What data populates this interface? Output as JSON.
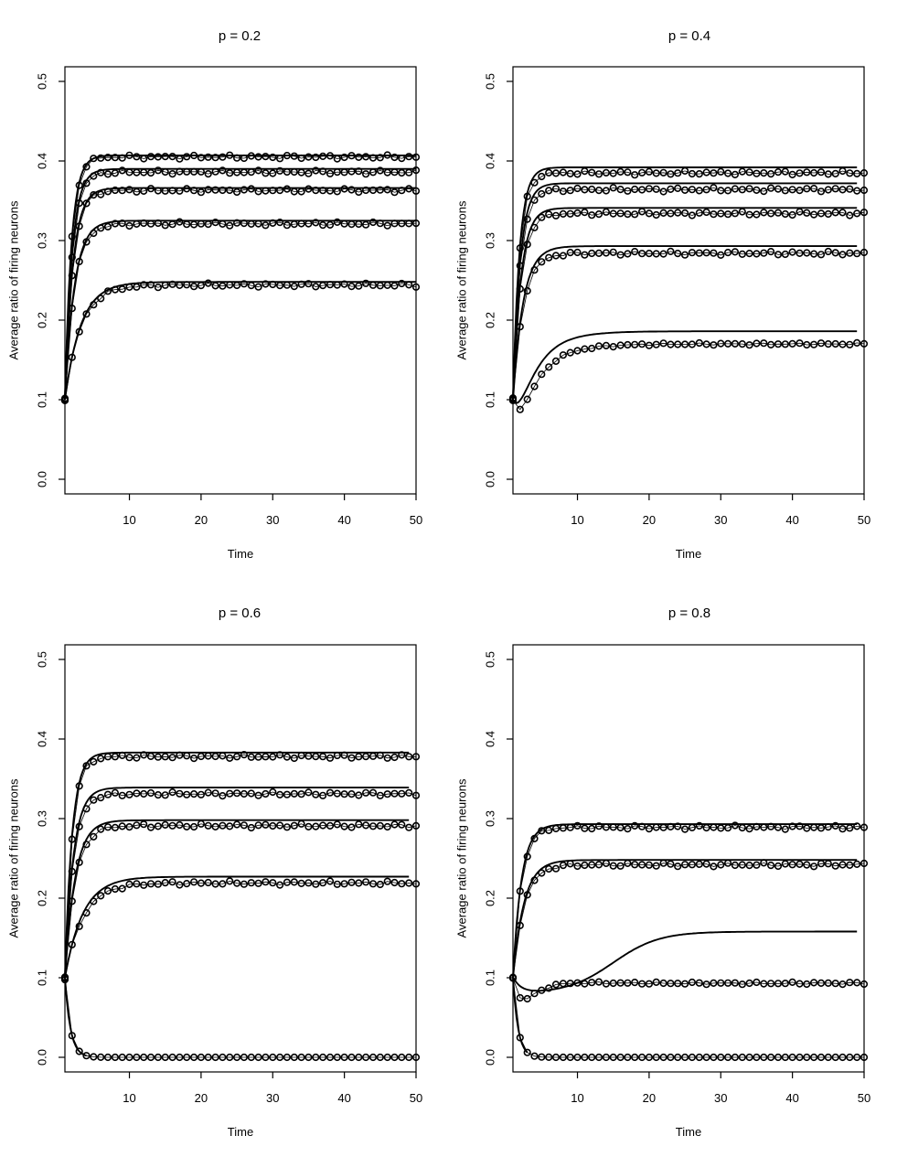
{
  "chart_data": [
    {
      "type": "line",
      "title": "p = 0.2",
      "xlabel": "Time",
      "ylabel": "Average ratio of firing neurons",
      "xlim": [
        1,
        50
      ],
      "ylim": [
        0,
        0.5
      ],
      "xticks": [
        "10",
        "20",
        "30",
        "40",
        "50"
      ],
      "yticks": [
        "0.0",
        "0.1",
        "0.2",
        "0.3",
        "0.4",
        "0.5"
      ],
      "grid": false,
      "legend": false,
      "series": [
        {
          "start": 0.1,
          "theory": {
            "steady": 0.407,
            "k": 1.1,
            "end": 50
          },
          "simulation": {
            "steady": 0.405,
            "noise": 0.0025
          }
        },
        {
          "start": 0.1,
          "theory": {
            "steady": 0.39,
            "k": 1.0,
            "end": 50
          },
          "simulation": {
            "steady": 0.386,
            "noise": 0.0025
          }
        },
        {
          "start": 0.1,
          "theory": {
            "steady": 0.366,
            "k": 0.9,
            "end": 50
          },
          "simulation": {
            "steady": 0.363,
            "noise": 0.0025
          }
        },
        {
          "start": 0.1,
          "theory": {
            "steady": 0.325,
            "k": 0.75,
            "end": 50
          },
          "simulation": {
            "steady": 0.321,
            "noise": 0.0025
          }
        },
        {
          "start": 0.1,
          "theory": {
            "steady": 0.248,
            "k": 0.45,
            "end": 50
          },
          "simulation": {
            "steady": 0.244,
            "noise": 0.0025
          }
        }
      ]
    },
    {
      "type": "line",
      "title": "p = 0.4",
      "xlabel": "Time",
      "ylabel": "Average ratio of firing neurons",
      "xlim": [
        1,
        50
      ],
      "ylim": [
        0,
        0.5
      ],
      "xticks": [
        "10",
        "20",
        "30",
        "40",
        "50"
      ],
      "yticks": [
        "0.0",
        "0.1",
        "0.2",
        "0.3",
        "0.4",
        "0.5"
      ],
      "grid": false,
      "legend": false,
      "series": [
        {
          "start": 0.1,
          "theory": {
            "steady": 0.392,
            "k": 1.1,
            "end": 49
          },
          "simulation": {
            "steady": 0.385,
            "noise": 0.0025
          }
        },
        {
          "start": 0.1,
          "theory": {
            "steady": 0.372,
            "k": 1.0,
            "end": 49
          },
          "simulation": {
            "steady": 0.364,
            "noise": 0.0025
          }
        },
        {
          "start": 0.1,
          "theory": {
            "steady": 0.341,
            "k": 0.9,
            "end": 49
          },
          "simulation": {
            "steady": 0.334,
            "noise": 0.0025
          }
        },
        {
          "start": 0.1,
          "theory": {
            "steady": 0.293,
            "k": 0.7,
            "end": 49
          },
          "simulation": {
            "steady": 0.284,
            "noise": 0.0025
          }
        },
        {
          "start": 0.1,
          "theory": {
            "steady": 0.186,
            "k": 0.28,
            "dip": 0.02,
            "end": 49
          },
          "simulation": {
            "steady": 0.17,
            "k": 0.25,
            "dip": 0.025,
            "noise": 0.0015
          }
        }
      ]
    },
    {
      "type": "line",
      "title": "p = 0.6",
      "xlabel": "Time",
      "ylabel": "Average ratio of firing neurons",
      "xlim": [
        1,
        50
      ],
      "ylim": [
        0,
        0.5
      ],
      "xticks": [
        "10",
        "20",
        "30",
        "40",
        "50"
      ],
      "yticks": [
        "0.0",
        "0.1",
        "0.2",
        "0.3",
        "0.4",
        "0.5"
      ],
      "grid": false,
      "legend": false,
      "series": [
        {
          "start": 0.1,
          "theory": {
            "steady": 0.383,
            "k": 1.0,
            "end": 49
          },
          "simulation": {
            "steady": 0.378,
            "noise": 0.0025
          }
        },
        {
          "start": 0.1,
          "theory": {
            "steady": 0.339,
            "k": 0.85,
            "end": 49
          },
          "simulation": {
            "steady": 0.331,
            "noise": 0.0025
          }
        },
        {
          "start": 0.1,
          "theory": {
            "steady": 0.298,
            "k": 0.7,
            "end": 49
          },
          "simulation": {
            "steady": 0.291,
            "noise": 0.0025
          }
        },
        {
          "start": 0.1,
          "theory": {
            "steady": 0.227,
            "k": 0.4,
            "end": 49
          },
          "simulation": {
            "steady": 0.219,
            "noise": 0.0025
          }
        },
        {
          "start": 0.1,
          "theory": {
            "steady": 0.0,
            "k": 1.3,
            "end": 4
          },
          "simulation": {
            "steady": 0.0,
            "k": 1.3,
            "noise": 0.0
          }
        }
      ]
    },
    {
      "type": "line",
      "title": "p = 0.8",
      "xlabel": "Time",
      "ylabel": "Average ratio of firing neurons",
      "xlim": [
        1,
        50
      ],
      "ylim": [
        0,
        0.5
      ],
      "xticks": [
        "10",
        "20",
        "30",
        "40",
        "50"
      ],
      "yticks": [
        "0.0",
        "0.1",
        "0.2",
        "0.3",
        "0.4",
        "0.5"
      ],
      "grid": false,
      "legend": false,
      "series": [
        {
          "start": 0.1,
          "theory": {
            "steady": 0.293,
            "k": 0.85,
            "end": 49
          },
          "simulation": {
            "steady": 0.289,
            "noise": 0.0025
          }
        },
        {
          "start": 0.1,
          "theory": {
            "steady": 0.248,
            "k": 0.65,
            "end": 49
          },
          "simulation": {
            "steady": 0.242,
            "noise": 0.0025
          }
        },
        {
          "start": 0.1,
          "theory": {
            "steady": 0.158,
            "sigmoid": true,
            "dip": 0.02,
            "mid": 15,
            "width": 3.2,
            "end": 49
          },
          "simulation": {
            "steady": 0.093,
            "k": 0.2,
            "dip": 0.022,
            "noise": 0.0015
          }
        },
        {
          "start": 0.1,
          "theory": {
            "steady": 0.0,
            "k": 1.4,
            "end": 3
          },
          "simulation": {
            "steady": 0.0,
            "k": 1.4,
            "noise": 0.0
          }
        }
      ]
    }
  ]
}
